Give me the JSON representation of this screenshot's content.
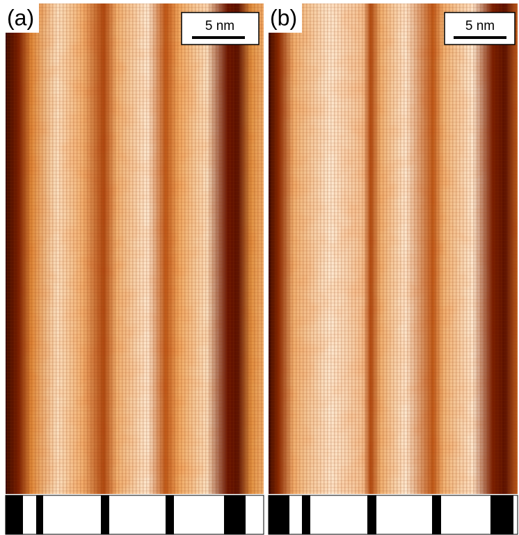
{
  "panels": [
    {
      "label": "(a)",
      "scale_bar": "5 nm"
    },
    {
      "label": "(b)",
      "scale_bar": "5 nm"
    }
  ]
}
